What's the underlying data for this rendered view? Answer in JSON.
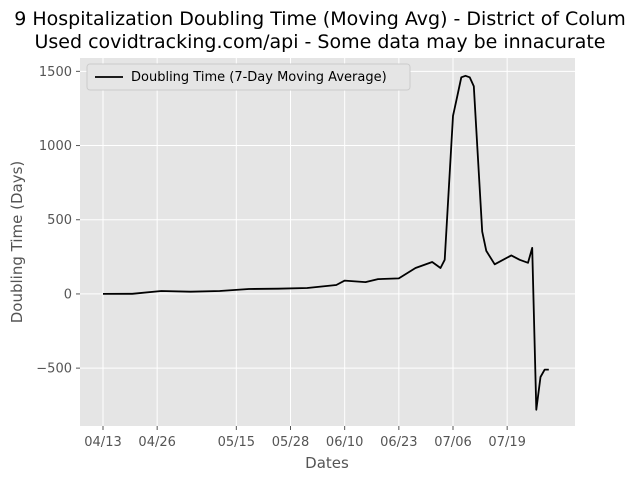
{
  "title_line1": "9 Hospitalization Doubling Time (Moving Avg) - District of Colum",
  "title_line2": "Used covidtracking.com/api - Some data may be innacurate",
  "chart_data": {
    "type": "line",
    "xlabel": "Dates",
    "ylabel": "Doubling Time (Days)",
    "xtick_labels": [
      "04/13",
      "04/26",
      "05/15",
      "05/28",
      "06/10",
      "06/23",
      "07/06",
      "07/19"
    ],
    "yticks": [
      -500,
      0,
      500,
      1000,
      1500
    ],
    "ylim": [
      -890,
      1590
    ],
    "grid": true,
    "legend_position": "top-left",
    "series": [
      {
        "name": "Doubling Time (7-Day Moving Average)",
        "color": "#000000",
        "x": [
          "04/13",
          "04/20",
          "04/27",
          "05/04",
          "05/11",
          "05/18",
          "05/25",
          "06/01",
          "06/08",
          "06/10",
          "06/15",
          "06/18",
          "06/23",
          "06/27",
          "07/01",
          "07/03",
          "07/04",
          "07/06",
          "07/07",
          "07/08",
          "07/09",
          "07/10",
          "07/11",
          "07/13",
          "07/14",
          "07/16",
          "07/20",
          "07/22",
          "07/24",
          "07/25",
          "07/26",
          "07/27",
          "07/28",
          "07/29"
        ],
        "y": [
          0,
          1,
          20,
          15,
          20,
          33,
          35,
          40,
          60,
          90,
          80,
          100,
          105,
          175,
          215,
          175,
          230,
          1200,
          1330,
          1460,
          1470,
          1460,
          1400,
          420,
          290,
          200,
          260,
          230,
          210,
          310,
          -780,
          -560,
          -510,
          -510
        ]
      }
    ]
  }
}
